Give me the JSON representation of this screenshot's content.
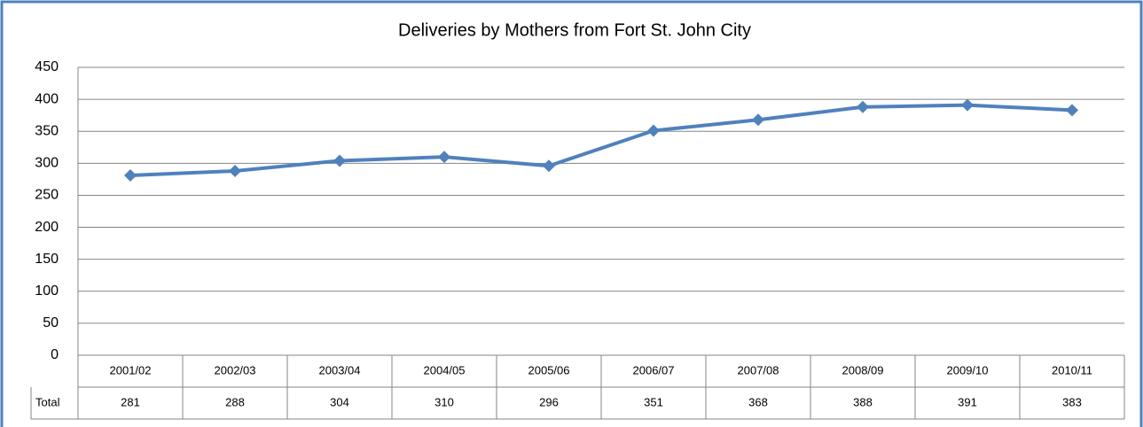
{
  "chart_data": {
    "type": "line",
    "title": "Deliveries by Mothers from Fort St. John City",
    "categories": [
      "2001/02",
      "2002/03",
      "2003/04",
      "2004/05",
      "2005/06",
      "2006/07",
      "2007/08",
      "2008/09",
      "2009/10",
      "2010/11"
    ],
    "series": [
      {
        "name": "Total",
        "color": "#4f81bd",
        "values": [
          281,
          288,
          304,
          310,
          296,
          351,
          368,
          388,
          391,
          383
        ]
      }
    ],
    "ylim": [
      0,
      450
    ],
    "yticks": [
      0,
      50,
      100,
      150,
      200,
      250,
      300,
      350,
      400,
      450
    ],
    "grid": true
  }
}
